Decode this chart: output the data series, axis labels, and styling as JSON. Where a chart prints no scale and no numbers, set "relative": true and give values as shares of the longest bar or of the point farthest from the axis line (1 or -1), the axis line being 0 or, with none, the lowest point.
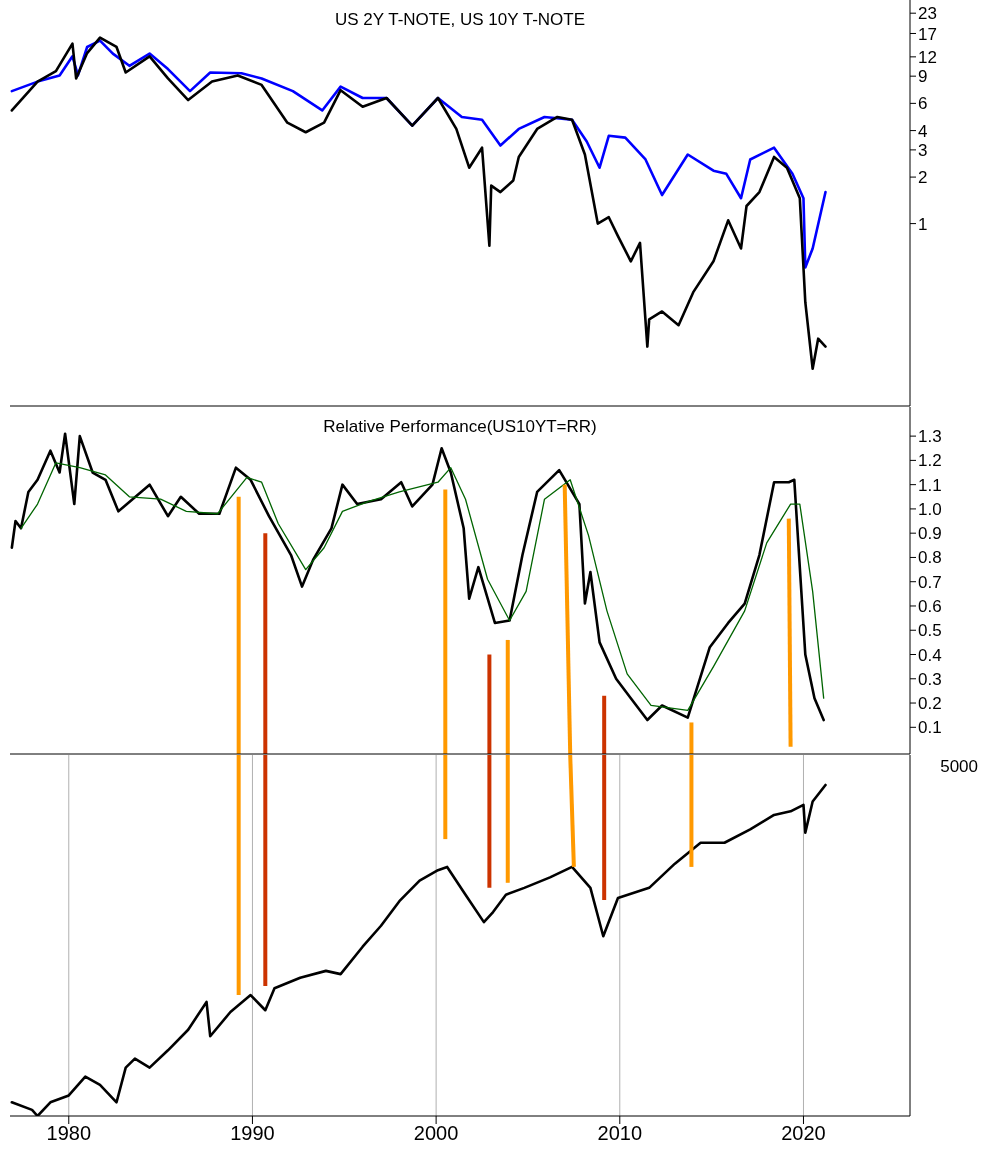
{
  "chart_data": [
    {
      "type": "line",
      "title": "US 2Y T-NOTE, US 10Y T-NOTE",
      "xlim": [
        1976.8,
        2025.8
      ],
      "xticks": [
        1980,
        1990,
        2000,
        2010,
        2020
      ],
      "ylim": [
        0.066,
        28
      ],
      "yticks": [
        1,
        2,
        3,
        4,
        6,
        9,
        12,
        17,
        23
      ],
      "log": "y",
      "grid": "x",
      "tick_labels": "y",
      "series": [
        {
          "color": "#0000ff",
          "x": [
            1976.9,
            1978.3,
            1979.5,
            1980.2,
            1980.5,
            1981.0,
            1981.7,
            1982.4,
            1983.3,
            1984.4,
            1985.4,
            1986.6,
            1987.7,
            1989.4,
            1990.5,
            1992.2,
            1993.8,
            1994.8,
            1996.0,
            1997.3,
            1998.7,
            2000.1,
            2001.4,
            2002.5,
            2003.5,
            2004.5,
            2005.9,
            2007.4,
            2008.2,
            2008.9,
            2009.4,
            2010.3,
            2011.4,
            2012.3,
            2013.7,
            2015.1,
            2015.8,
            2016.6,
            2017.1,
            2018.4,
            2019.4,
            2020.0,
            2020.1,
            2020.5,
            2021.2
          ],
          "values": [
            7.2,
            8.3,
            9.1,
            12.1,
            9.1,
            13.9,
            15.3,
            12.6,
            10.5,
            12.6,
            10,
            7.2,
            9.5,
            9.4,
            8.7,
            7.2,
            5.4,
            7.7,
            6.5,
            6.5,
            4.3,
            6.5,
            4.9,
            4.7,
            3.2,
            4.1,
            4.9,
            4.7,
            3.4,
            2.3,
            3.7,
            3.6,
            2.6,
            1.53,
            2.8,
            2.2,
            2.1,
            1.46,
            2.6,
            3.1,
            2.1,
            1.46,
            0.52,
            0.69,
            1.6
          ]
        },
        {
          "color": "#000000",
          "x": [
            1976.9,
            1978.3,
            1979.3,
            1980.2,
            1980.4,
            1981.0,
            1981.7,
            1982.6,
            1983.1,
            1984.4,
            1985.4,
            1986.5,
            1987.8,
            1989.2,
            1990.5,
            1991.9,
            1992.9,
            1993.9,
            1994.8,
            1996.0,
            1997.3,
            1998.7,
            2000.1,
            2001.1,
            2001.8,
            2002.5,
            2002.9,
            2003.0,
            2003.5,
            2004.2,
            2004.5,
            2005.5,
            2006.6,
            2007.4,
            2008.1,
            2008.8,
            2009.4,
            2009.9,
            2010.6,
            2011.1,
            2011.5,
            2011.6,
            2012.3,
            2013.2,
            2014.0,
            2015.1,
            2015.9,
            2016.6,
            2016.9,
            2017.6,
            2018.4,
            2019.1,
            2019.8,
            2020.1,
            2020.5,
            2020.8,
            2021.2
          ],
          "values": [
            5.4,
            8.3,
            9.7,
            14.6,
            8.7,
            12.7,
            16.0,
            13.9,
            9.5,
            12.1,
            8.7,
            6.3,
            8.3,
            9.1,
            7.9,
            4.5,
            3.9,
            4.5,
            7.3,
            5.7,
            6.5,
            4.3,
            6.5,
            4.1,
            2.3,
            3.1,
            0.72,
            1.76,
            1.6,
            1.9,
            2.7,
            4.1,
            4.9,
            4.7,
            2.8,
            1.0,
            1.1,
            0.83,
            0.57,
            0.75,
            0.16,
            0.24,
            0.27,
            0.22,
            0.36,
            0.57,
            1.05,
            0.69,
            1.3,
            1.6,
            2.7,
            2.3,
            1.46,
            0.31,
            0.115,
            0.18,
            0.16
          ]
        }
      ]
    },
    {
      "type": "line",
      "title": "Relative Performance(US10YT=RR)",
      "xlim": [
        1976.8,
        2025.8
      ],
      "xticks": [
        1980,
        1990,
        2000,
        2010,
        2020
      ],
      "ylim": [
        -0.01,
        1.42
      ],
      "yticks": [
        0.1,
        0.2,
        0.3,
        0.4,
        0.5,
        0.6,
        0.7,
        0.8,
        0.9,
        {
          "value": 1.0,
          "label": "1.0"
        },
        1.1,
        1.2,
        1.3
      ],
      "grid": "x",
      "tick_labels": "y",
      "series": [
        {
          "color": "#000000",
          "x": [
            1976.9,
            1977.1,
            1977.4,
            1977.8,
            1978.3,
            1979.0,
            1979.5,
            1979.8,
            1980.3,
            1980.6,
            1981.3,
            1982.0,
            1982.7,
            1984.4,
            1985.4,
            1986.1,
            1987.1,
            1988.2,
            1989.1,
            1989.9,
            1990.9,
            1992.1,
            1992.7,
            1993.3,
            1994.3,
            1994.9,
            1995.7,
            1997.0,
            1998.1,
            1998.7,
            1999.8,
            2000.3,
            2000.8,
            2001.5,
            2001.8,
            2002.3,
            2003.2,
            2004.0,
            2004.7,
            2005.5,
            2006.7,
            2007.8,
            2008.1,
            2008.4,
            2008.9,
            2009.8,
            2010.6,
            2011.5,
            2012.3,
            2013.7,
            2014.9,
            2015.9,
            2016.8,
            2017.6,
            2018.4,
            2019.2,
            2019.5,
            2020.1,
            2020.6,
            2021.1
          ],
          "values": [
            0.84,
            0.95,
            0.92,
            1.07,
            1.12,
            1.24,
            1.15,
            1.31,
            1.02,
            1.3,
            1.15,
            1.12,
            0.99,
            1.1,
            0.97,
            1.05,
            0.98,
            0.98,
            1.17,
            1.12,
            0.97,
            0.81,
            0.68,
            0.79,
            0.92,
            1.1,
            1.02,
            1.04,
            1.11,
            1.01,
            1.1,
            1.25,
            1.15,
            0.92,
            0.63,
            0.76,
            0.53,
            0.54,
            0.81,
            1.07,
            1.16,
            1.02,
            0.61,
            0.74,
            0.45,
            0.3,
            0.22,
            0.13,
            0.19,
            0.14,
            0.43,
            0.53,
            0.61,
            0.81,
            1.11,
            1.11,
            1.12,
            0.4,
            0.22,
            0.13
          ]
        },
        {
          "color": "#006400",
          "x": [
            1977.4,
            1978.3,
            1979.3,
            1980.6,
            1982.0,
            1983.3,
            1985.0,
            1986.4,
            1988.1,
            1989.7,
            1990.5,
            1991.4,
            1992.9,
            1993.9,
            1994.9,
            1996.3,
            1998.0,
            2000.1,
            2000.8,
            2001.6,
            2002.8,
            2004.0,
            2004.9,
            2005.9,
            2007.3,
            2008.3,
            2009.3,
            2010.4,
            2011.7,
            2013.7,
            2015.1,
            2016.8,
            2018.0,
            2019.3,
            2019.8,
            2020.5,
            2021.1
          ],
          "values": [
            0.92,
            1.02,
            1.19,
            1.17,
            1.14,
            1.05,
            1.04,
            0.99,
            0.98,
            1.13,
            1.11,
            0.94,
            0.75,
            0.84,
            0.99,
            1.03,
            1.07,
            1.11,
            1.17,
            1.04,
            0.71,
            0.54,
            0.66,
            1.04,
            1.12,
            0.89,
            0.58,
            0.32,
            0.19,
            0.17,
            0.35,
            0.58,
            0.86,
            1.02,
            1.02,
            0.66,
            0.22
          ]
        },
        {
          "color": "#ff9900",
          "x": [
            1989.25,
            1989.25
          ],
          "values": [
            1.05,
            -0.01
          ]
        },
        {
          "color": "#cc3300",
          "x": [
            1990.7,
            1990.7
          ],
          "values": [
            0.9,
            -0.01
          ]
        },
        {
          "color": "#ff9900",
          "x": [
            2000.5,
            2000.5
          ],
          "values": [
            1.08,
            -0.01
          ]
        },
        {
          "color": "#cc3300",
          "x": [
            2002.9,
            2002.9
          ],
          "values": [
            0.4,
            -0.01
          ]
        },
        {
          "color": "#ff9900",
          "x": [
            2003.9,
            2003.9
          ],
          "values": [
            0.46,
            -0.01
          ]
        },
        {
          "color": "#ff9900",
          "x": [
            2007.0,
            2007.3
          ],
          "values": [
            1.1,
            -0.01
          ]
        },
        {
          "color": "#cc3300",
          "x": [
            2009.15,
            2009.15
          ],
          "values": [
            0.23,
            -0.01
          ]
        },
        {
          "color": "#ff9900",
          "x": [
            2013.9,
            2013.9
          ],
          "values": [
            0.12,
            -0.01
          ]
        },
        {
          "color": "#ff9900",
          "x": [
            2019.2,
            2019.3
          ],
          "values": [
            0.96,
            0.02
          ]
        }
      ]
    },
    {
      "type": "line",
      "relative": true,
      "xlim": [
        1976.8,
        2025.8
      ],
      "xticks": [
        1980,
        1990,
        2000,
        2010,
        2020
      ],
      "grid": "x",
      "annotations": [
        "5000"
      ],
      "series": [
        {
          "color": "#000000",
          "x": [
            1976.9,
            1978.0,
            1978.3,
            1979.0,
            1980.0,
            1980.9,
            1981.7,
            1982.6,
            1983.1,
            1983.6,
            1984.4,
            1985.4,
            1986.5,
            1987.5,
            1987.7,
            1988.8,
            1989.9,
            1990.7,
            1991.2,
            1992.6,
            1994.0,
            1994.8,
            1996.0,
            1997.0,
            1998.0,
            1999.1,
            2000.1,
            2000.6,
            2001.6,
            2002.6,
            2003.1,
            2003.8,
            2004.8,
            2006.2,
            2007.4,
            2008.4,
            2009.1,
            2009.9,
            2011.6,
            2013.0,
            2014.4,
            2015.7,
            2017.1,
            2018.4,
            2019.3,
            2020.0,
            2020.1,
            2020.5,
            2021.2
          ],
          "values": [
            0.038,
            0.017,
            0,
            0.038,
            0.057,
            0.109,
            0.086,
            0.038,
            0.134,
            0.159,
            0.134,
            0.182,
            0.239,
            0.316,
            0.221,
            0.288,
            0.335,
            0.293,
            0.354,
            0.383,
            0.402,
            0.393,
            0.469,
            0.527,
            0.595,
            0.652,
            0.681,
            0.69,
            0.613,
            0.537,
            0.565,
            0.613,
            0.632,
            0.661,
            0.69,
            0.632,
            0.498,
            0.604,
            0.632,
            0.699,
            0.757,
            0.757,
            0.794,
            0.834,
            0.844,
            0.862,
            0.785,
            0.871,
            0.917
          ]
        },
        {
          "color": "#ff9900",
          "x": [
            1989.25,
            1989.25
          ],
          "values": [
            1,
            0.335
          ]
        },
        {
          "color": "#cc3300",
          "x": [
            1990.7,
            1990.7
          ],
          "values": [
            1,
            0.36
          ]
        },
        {
          "color": "#ff9900",
          "x": [
            2000.5,
            2000.5
          ],
          "values": [
            1,
            0.767
          ]
        },
        {
          "color": "#cc3300",
          "x": [
            2002.9,
            2002.9
          ],
          "values": [
            1,
            0.632
          ]
        },
        {
          "color": "#ff9900",
          "x": [
            2003.9,
            2003.9
          ],
          "values": [
            1,
            0.646
          ]
        },
        {
          "color": "#ff9900",
          "x": [
            2007.3,
            2007.5
          ],
          "values": [
            1,
            0.69
          ]
        },
        {
          "color": "#cc3300",
          "x": [
            2009.15,
            2009.15
          ],
          "values": [
            1,
            0.598
          ]
        },
        {
          "color": "#ff9900",
          "x": [
            2013.9,
            2013.9
          ],
          "values": [
            1,
            0.69
          ]
        }
      ]
    }
  ]
}
